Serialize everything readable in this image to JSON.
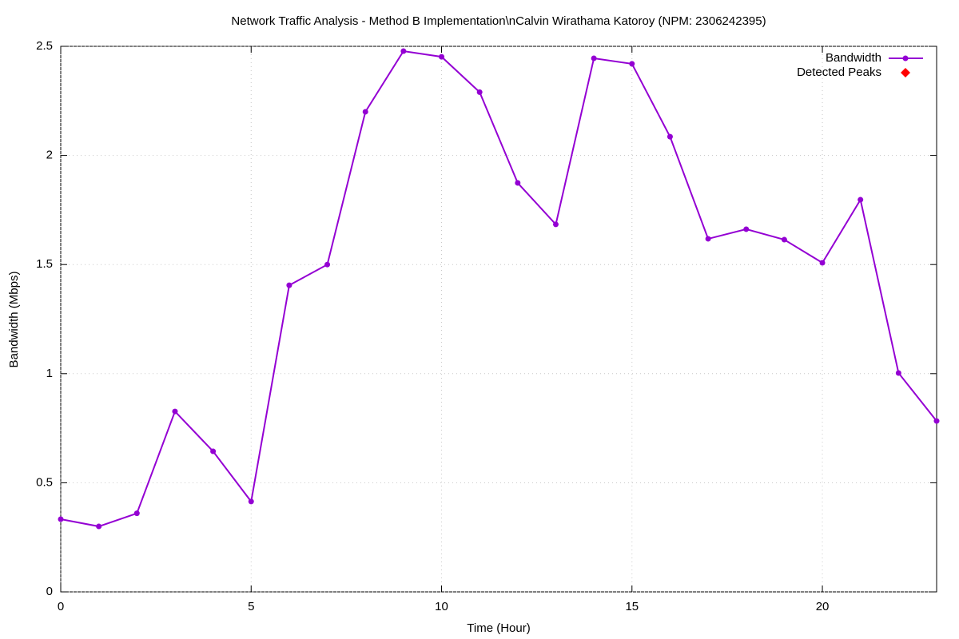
{
  "chart_data": {
    "type": "line",
    "title": "Network Traffic Analysis - Method B Implementation\\nCalvin Wirathama Katoroy (NPM: 2306242395)",
    "x_label": "Time (Hour)",
    "y_label": "Bandwidth (Mbps)",
    "x": [
      0,
      1,
      2,
      3,
      4,
      5,
      6,
      7,
      8,
      9,
      10,
      11,
      12,
      13,
      14,
      15,
      16,
      17,
      18,
      19,
      20,
      21,
      22,
      23
    ],
    "series": [
      {
        "name": "Bandwidth",
        "color": "#9400d3",
        "values": [
          0.333,
          0.3,
          0.36,
          0.827,
          0.644,
          0.414,
          1.405,
          1.5,
          2.2,
          2.478,
          2.452,
          2.29,
          1.874,
          1.684,
          2.445,
          2.42,
          2.086,
          1.618,
          1.662,
          1.614,
          1.508,
          1.797,
          1.003,
          0.783
        ]
      },
      {
        "name": "Detected Peaks",
        "color": "#ff0000",
        "values": [
          null,
          null,
          null,
          null,
          null,
          null,
          null,
          null,
          null,
          null,
          null,
          null,
          null,
          null,
          null,
          null,
          null,
          null,
          null,
          null,
          null,
          null,
          null,
          null
        ]
      }
    ],
    "xlim": [
      0,
      23
    ],
    "xticks": [
      0,
      5,
      10,
      15,
      20
    ],
    "ylim": [
      0,
      2.5
    ],
    "yticks": [
      0,
      0.5,
      1,
      1.5,
      2,
      2.5
    ],
    "grid": true,
    "legend": "top-right"
  }
}
